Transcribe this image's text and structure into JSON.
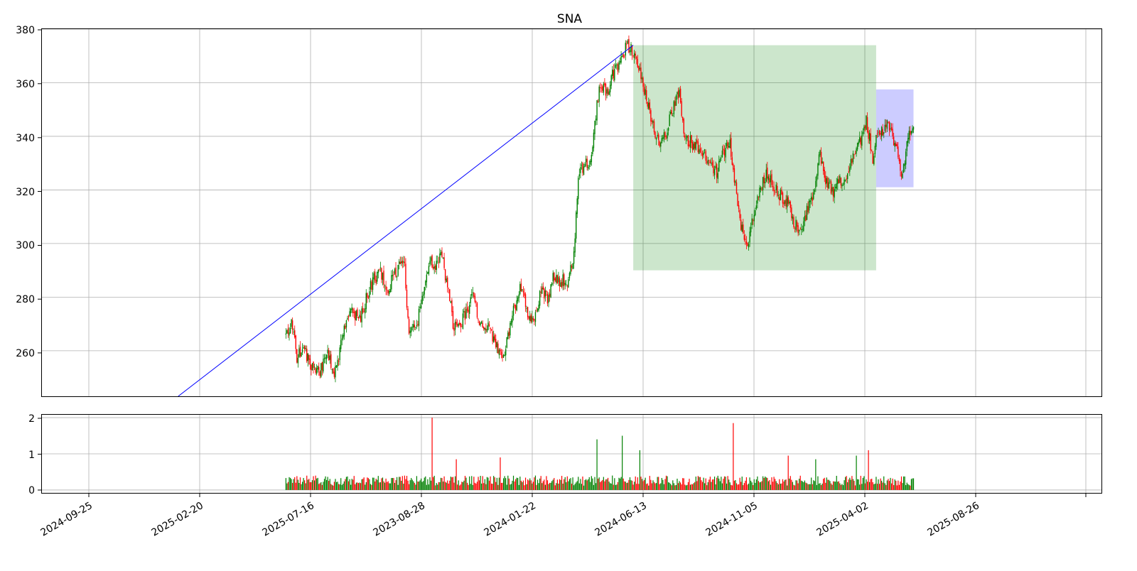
{
  "chart_data": [
    {
      "type": "candlestick",
      "title": "SNA",
      "x_tick_labels": [
        "2024-09-25",
        "2025-02-20",
        "2025-07-16",
        "2023-08-28",
        "2024-01-22",
        "2024-06-13",
        "2024-11-05",
        "2025-04-02",
        "2025-08-26"
      ],
      "xlim": [
        -222,
        742
      ],
      "ylim": [
        243,
        380
      ],
      "y_ticks": [
        260,
        280,
        300,
        320,
        340,
        360,
        380
      ],
      "grid": true,
      "colors": {
        "up": "#008000",
        "down": "#ff0000",
        "trendline": "#0000ff",
        "zone_green": "#008000",
        "zone_blue": "#0000ff"
      },
      "trendline": {
        "from": {
          "x": -98,
          "y": 243
        },
        "to": {
          "x": 316,
          "y": 374
        }
      },
      "zones": [
        {
          "name": "range-zone",
          "x0": 316,
          "x1": 537,
          "y0": 290,
          "y1": 374
        },
        {
          "name": "current-zone",
          "x0": 537,
          "x1": 571,
          "y0": 321,
          "y1": 357.5
        }
      ],
      "price_anchors": [
        [
          0,
          266
        ],
        [
          6,
          270
        ],
        [
          10,
          258
        ],
        [
          16,
          262
        ],
        [
          22,
          255
        ],
        [
          30,
          252
        ],
        [
          38,
          260
        ],
        [
          44,
          252
        ],
        [
          48,
          258
        ],
        [
          52,
          268
        ],
        [
          60,
          274
        ],
        [
          68,
          272
        ],
        [
          75,
          282
        ],
        [
          80,
          287
        ],
        [
          86,
          289
        ],
        [
          92,
          282
        ],
        [
          98,
          288
        ],
        [
          104,
          292
        ],
        [
          108,
          292
        ],
        [
          112,
          265
        ],
        [
          120,
          272
        ],
        [
          126,
          285
        ],
        [
          130,
          294
        ],
        [
          136,
          292
        ],
        [
          142,
          295
        ],
        [
          148,
          282
        ],
        [
          152,
          270
        ],
        [
          158,
          268
        ],
        [
          164,
          275
        ],
        [
          170,
          280
        ],
        [
          176,
          272
        ],
        [
          184,
          268
        ],
        [
          192,
          262
        ],
        [
          198,
          258
        ],
        [
          202,
          266
        ],
        [
          208,
          276
        ],
        [
          214,
          284
        ],
        [
          220,
          274
        ],
        [
          226,
          270
        ],
        [
          232,
          282
        ],
        [
          238,
          280
        ],
        [
          244,
          288
        ],
        [
          250,
          286
        ],
        [
          256,
          286
        ],
        [
          262,
          296
        ],
        [
          266,
          326
        ],
        [
          272,
          330
        ],
        [
          278,
          332
        ],
        [
          282,
          348
        ],
        [
          286,
          360
        ],
        [
          292,
          356
        ],
        [
          298,
          364
        ],
        [
          304,
          368
        ],
        [
          310,
          374
        ],
        [
          316,
          372
        ],
        [
          322,
          364
        ],
        [
          328,
          355
        ],
        [
          334,
          344
        ],
        [
          340,
          336
        ],
        [
          346,
          342
        ],
        [
          352,
          350
        ],
        [
          358,
          356
        ],
        [
          362,
          340
        ],
        [
          368,
          338
        ],
        [
          374,
          336
        ],
        [
          380,
          334
        ],
        [
          386,
          330
        ],
        [
          392,
          326
        ],
        [
          398,
          334
        ],
        [
          404,
          338
        ],
        [
          410,
          318
        ],
        [
          414,
          306
        ],
        [
          420,
          298
        ],
        [
          426,
          312
        ],
        [
          432,
          322
        ],
        [
          438,
          326
        ],
        [
          444,
          322
        ],
        [
          450,
          318
        ],
        [
          456,
          316
        ],
        [
          462,
          308
        ],
        [
          468,
          304
        ],
        [
          474,
          312
        ],
        [
          480,
          318
        ],
        [
          486,
          334
        ],
        [
          492,
          322
        ],
        [
          498,
          320
        ],
        [
          504,
          324
        ],
        [
          510,
          324
        ],
        [
          516,
          334
        ],
        [
          522,
          338
        ],
        [
          528,
          346
        ],
        [
          534,
          332
        ],
        [
          537,
          340
        ],
        [
          542,
          342
        ],
        [
          548,
          344
        ],
        [
          554,
          338
        ],
        [
          560,
          326
        ],
        [
          566,
          338
        ],
        [
          571,
          346
        ]
      ],
      "volume_spikes": [
        [
          133,
          2.0
        ],
        [
          155,
          0.85
        ],
        [
          195,
          0.9
        ],
        [
          283,
          1.4
        ],
        [
          306,
          1.5
        ],
        [
          322,
          1.1
        ],
        [
          407,
          1.85
        ],
        [
          530,
          1.1
        ],
        [
          519,
          0.95
        ],
        [
          457,
          0.95
        ],
        [
          482,
          0.85
        ]
      ],
      "volume_ylim": [
        -0.08,
        2.08
      ],
      "volume_y_ticks": [
        0,
        1,
        2
      ]
    }
  ],
  "ticks": {
    "price": [
      "260",
      "280",
      "300",
      "320",
      "340",
      "360",
      "380"
    ],
    "volume": [
      "0",
      "1",
      "2"
    ]
  }
}
